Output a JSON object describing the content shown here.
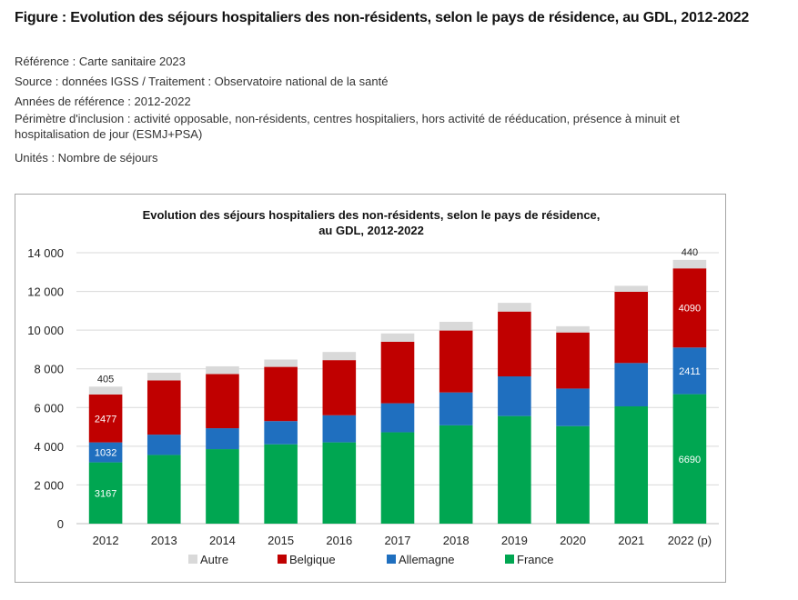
{
  "figure_title": "Figure : Evolution des séjours hospitaliers des non-résidents, selon le pays de résidence, au GDL, 2012-2022",
  "meta": {
    "reference": "Référence : Carte sanitaire 2023",
    "source": "Source : données IGSS / Traitement : Observatoire national de la santé",
    "annees": "Années de référence : 2012-2022",
    "perimetre_line1": "Périmètre d'inclusion : activité opposable, non-résidents, centres hospitaliers, hors activité de rééducation, présence à minuit et",
    "perimetre_line2": "hospitalisation de jour (ESMJ+PSA)",
    "unites": "Unités : Nombre de séjours"
  },
  "chart_data": {
    "type": "bar",
    "stacked": true,
    "title_line1": "Evolution des séjours hospitaliers des non-résidents, selon le pays de résidence,",
    "title_line2": "au GDL, 2012-2022",
    "categories": [
      "2012",
      "2013",
      "2014",
      "2015",
      "2016",
      "2017",
      "2018",
      "2019",
      "2020",
      "2021",
      "2022 (p)"
    ],
    "ylim": [
      0,
      14000
    ],
    "yticks": [
      0,
      2000,
      4000,
      6000,
      8000,
      10000,
      12000,
      14000
    ],
    "ytick_labels": [
      "0",
      "2 000",
      "4 000",
      "6 000",
      "8 000",
      "10 000",
      "12 000",
      "14 000"
    ],
    "grid": true,
    "legend_position": "bottom",
    "series": [
      {
        "name": "France",
        "color": "#00a651",
        "values": [
          3167,
          3550,
          3850,
          4100,
          4200,
          4720,
          5080,
          5560,
          5040,
          6060,
          6690
        ]
      },
      {
        "name": "Allemagne",
        "color": "#1f6fbf",
        "values": [
          1032,
          1050,
          1080,
          1200,
          1400,
          1500,
          1700,
          2050,
          1940,
          2240,
          2411
        ]
      },
      {
        "name": "Belgique",
        "color": "#c00000",
        "values": [
          2477,
          2800,
          2800,
          2800,
          2850,
          3180,
          3200,
          3350,
          2900,
          3680,
          4090
        ]
      },
      {
        "name": "Autre",
        "color": "#d9d9d9",
        "values": [
          405,
          400,
          400,
          380,
          420,
          430,
          450,
          450,
          320,
          310,
          440
        ]
      }
    ],
    "data_labels": [
      {
        "series": "France",
        "category": "2012",
        "text": "3167"
      },
      {
        "series": "Allemagne",
        "category": "2012",
        "text": "1032"
      },
      {
        "series": "Belgique",
        "category": "2012",
        "text": "2477"
      },
      {
        "series": "Autre",
        "category": "2012",
        "text": "405"
      },
      {
        "series": "France",
        "category": "2022 (p)",
        "text": "6690"
      },
      {
        "series": "Allemagne",
        "category": "2022 (p)",
        "text": "2411"
      },
      {
        "series": "Belgique",
        "category": "2022 (p)",
        "text": "4090"
      },
      {
        "series": "Autre",
        "category": "2022 (p)",
        "text": "440"
      }
    ],
    "legend_order": [
      "Autre",
      "Belgique",
      "Allemagne",
      "France"
    ]
  }
}
